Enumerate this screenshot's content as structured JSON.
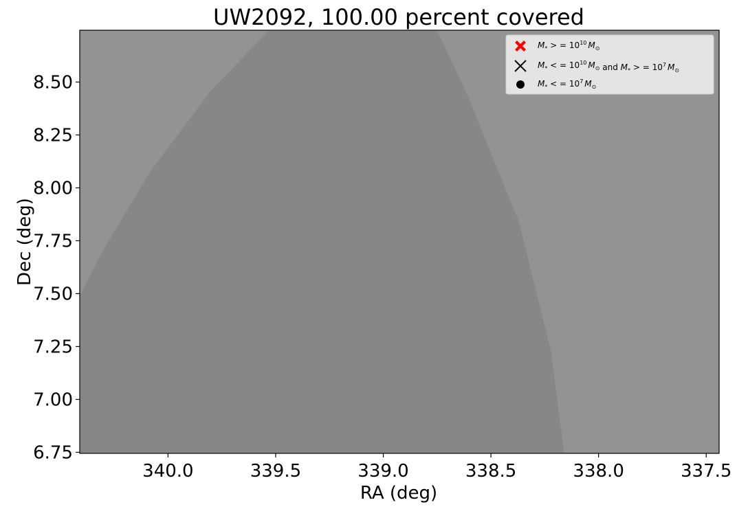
{
  "chart_data": {
    "type": "area",
    "title": "UW2092, 100.00 percent covered",
    "xlabel": "RA (deg)",
    "ylabel": "Dec (deg)",
    "xlim": [
      340.41,
      337.44
    ],
    "ylim": [
      6.745,
      8.745
    ],
    "x_inverted": true,
    "grid": false,
    "xticks": [
      340.0,
      339.5,
      339.0,
      338.5,
      338.0,
      337.5
    ],
    "xtick_labels": [
      "340.0",
      "339.5",
      "339.0",
      "338.5",
      "338.0",
      "337.5"
    ],
    "yticks": [
      6.75,
      7.0,
      7.25,
      7.5,
      7.75,
      8.0,
      8.25,
      8.5
    ],
    "ytick_labels": [
      "6.75",
      "7.00",
      "7.25",
      "7.50",
      "7.75",
      "8.00",
      "8.25",
      "8.50"
    ],
    "background_color": "#939393",
    "coverage_color": "#878787",
    "coverage_region": [
      [
        340.41,
        6.745
      ],
      [
        340.41,
        7.49
      ],
      [
        340.31,
        7.69
      ],
      [
        340.08,
        8.08
      ],
      [
        339.8,
        8.46
      ],
      [
        339.53,
        8.745
      ],
      [
        338.75,
        8.745
      ],
      [
        338.61,
        8.44
      ],
      [
        338.37,
        7.84
      ],
      [
        338.22,
        7.22
      ],
      [
        338.16,
        6.745
      ]
    ],
    "legend": {
      "position": "upper right",
      "entries": [
        {
          "marker": "filled-x",
          "color": "#ff0000",
          "label_pre": "M",
          "label_sub": "*",
          "label_mid": " > = 10",
          "label_sup": "10",
          "label_end": "M",
          "label_end_sub": "⊙"
        },
        {
          "marker": "x",
          "color": "#000000",
          "label_pre": "M",
          "label_sub": "*",
          "label_mid": " < = 10",
          "label_sup": "10",
          "label_end": "M",
          "label_end_sub": "⊙",
          "label_extra": "  and ",
          "label_pre2": "M",
          "label_sub2": "*",
          "label_mid2": " > = 10",
          "label_sup2": "7",
          "label_end2": "M",
          "label_end_sub2": "⊙"
        },
        {
          "marker": "dot",
          "color": "#000000",
          "label_pre": "M",
          "label_sub": "*",
          "label_mid": " < = 10",
          "label_sup": "7",
          "label_end": "M",
          "label_end_sub": "⊙"
        }
      ]
    }
  }
}
